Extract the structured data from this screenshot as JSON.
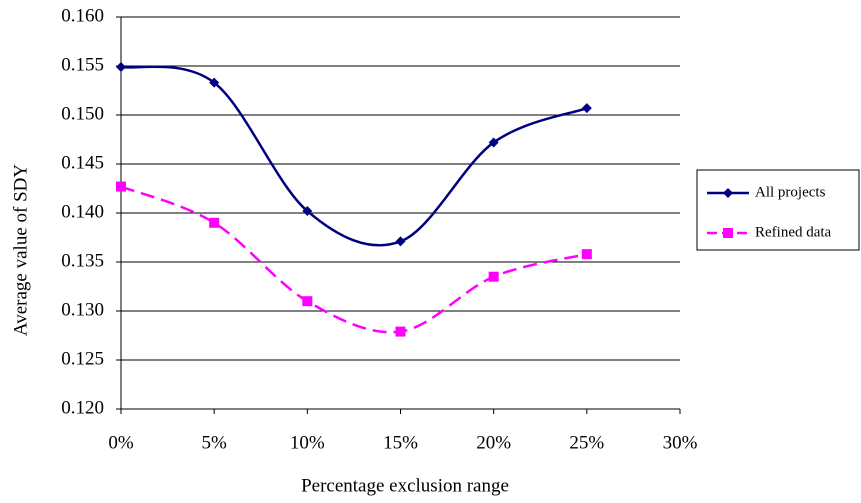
{
  "chart_data": {
    "type": "line",
    "x_label": "Percentage exclusion range",
    "y_label": "Average value of SDY",
    "x": [
      0,
      5,
      10,
      15,
      20,
      25
    ],
    "series": [
      {
        "name": "All projects",
        "color": "#000080",
        "marker": "diamond",
        "dash": false,
        "values": [
          0.1549,
          0.1533,
          0.1402,
          0.1371,
          0.1472,
          0.1507
        ]
      },
      {
        "name": "Refined data",
        "color": "#ff00ff",
        "marker": "square",
        "dash": true,
        "values": [
          0.1427,
          0.139,
          0.131,
          0.1279,
          0.1335,
          0.1358
        ]
      }
    ],
    "xlim": [
      0,
      30
    ],
    "xticks": [
      {
        "value": 0,
        "label": "0%"
      },
      {
        "value": 5,
        "label": "5%"
      },
      {
        "value": 10,
        "label": "10%"
      },
      {
        "value": 15,
        "label": "15%"
      },
      {
        "value": 20,
        "label": "20%"
      },
      {
        "value": 25,
        "label": "25%"
      },
      {
        "value": 30,
        "label": "30%"
      }
    ],
    "ylim": [
      0.12,
      0.16
    ],
    "yticks": [
      {
        "value": 0.12,
        "label": "0.120"
      },
      0.125,
      {
        "value": 0.13,
        "label": "0.130"
      },
      0.135,
      {
        "value": 0.14,
        "label": "0.140"
      },
      0.145,
      {
        "value": 0.15,
        "label": "0.150"
      },
      0.155,
      {
        "value": 0.16,
        "label": "0.160"
      }
    ],
    "grid": true,
    "smooth": true,
    "legend": "right"
  }
}
